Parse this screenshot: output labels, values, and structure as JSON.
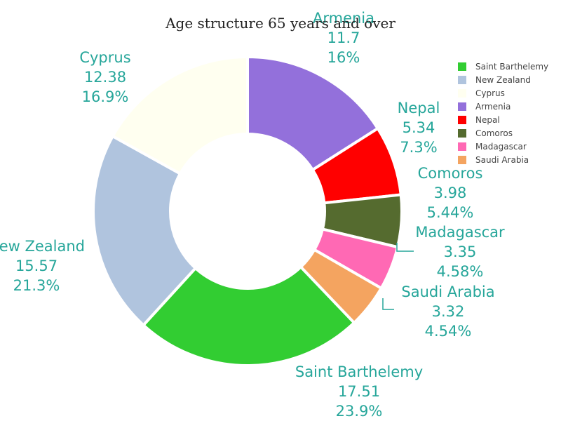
{
  "chart_data": {
    "type": "pie",
    "title": "Age structure 65 years and over",
    "hole": 0.5,
    "legend_position": "top-right",
    "slices": [
      {
        "label": "Saint Barthelemy",
        "value": 17.51,
        "percent": "23.9%",
        "color": "#32cd32"
      },
      {
        "label": "New Zealand",
        "value": 15.57,
        "percent": "21.3%",
        "color": "#b0c4de"
      },
      {
        "label": "Cyprus",
        "value": 12.38,
        "percent": "16.9%",
        "color": "#fffff0"
      },
      {
        "label": "Armenia",
        "value": 11.7,
        "percent": "16%",
        "color": "#9370db"
      },
      {
        "label": "Nepal",
        "value": 5.34,
        "percent": "7.3%",
        "color": "#ff0000"
      },
      {
        "label": "Comoros",
        "value": 3.98,
        "percent": "5.44%",
        "color": "#556b2f"
      },
      {
        "label": "Madagascar",
        "value": 3.35,
        "percent": "4.58%",
        "color": "#ff69b4"
      },
      {
        "label": "Saudi Arabia",
        "value": 3.32,
        "percent": "4.54%",
        "color": "#f4a460"
      }
    ]
  }
}
